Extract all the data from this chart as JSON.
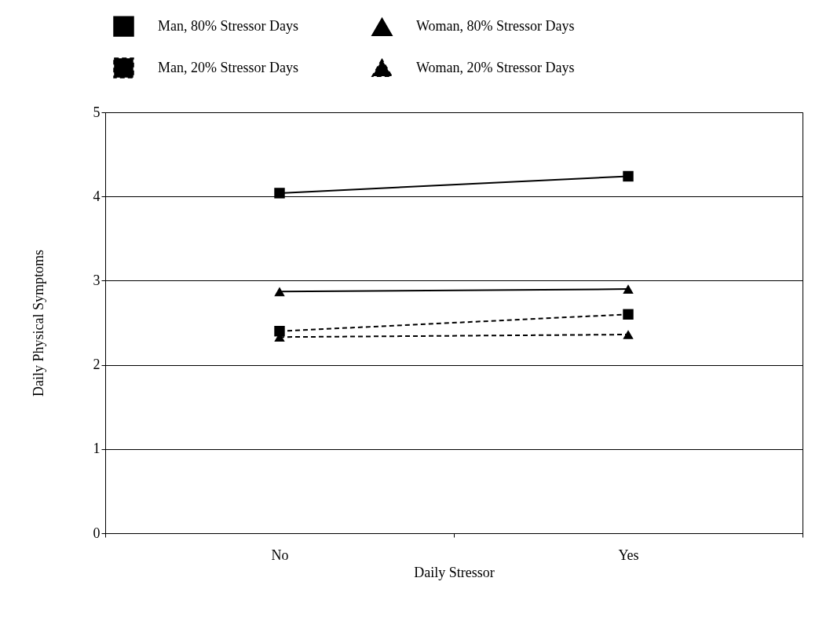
{
  "chart_data": {
    "type": "line",
    "xlabel": "Daily Stressor",
    "ylabel": "Daily Physical Symptoms",
    "categories": [
      "No",
      "Yes"
    ],
    "series": [
      {
        "name": "Man, 80% Stressor Days",
        "color": "#000000",
        "marker": "square",
        "line_style": "solid",
        "values": [
          4.04,
          4.24
        ]
      },
      {
        "name": "Woman, 80% Stressor Days",
        "color": "#000000",
        "marker": "triangle",
        "line_style": "solid",
        "values": [
          2.87,
          2.9
        ]
      },
      {
        "name": "Man, 20% Stressor Days",
        "color": "#000000",
        "marker": "square",
        "line_style": "dashed",
        "values": [
          2.4,
          2.6
        ]
      },
      {
        "name": "Woman, 20% Stressor Days",
        "color": "#000000",
        "marker": "triangle",
        "line_style": "dashed",
        "values": [
          2.33,
          2.36
        ]
      }
    ],
    "ylim": [
      0,
      5
    ],
    "yticks": [
      0,
      1,
      2,
      3,
      4,
      5
    ],
    "grid": "y",
    "legend": "top"
  }
}
